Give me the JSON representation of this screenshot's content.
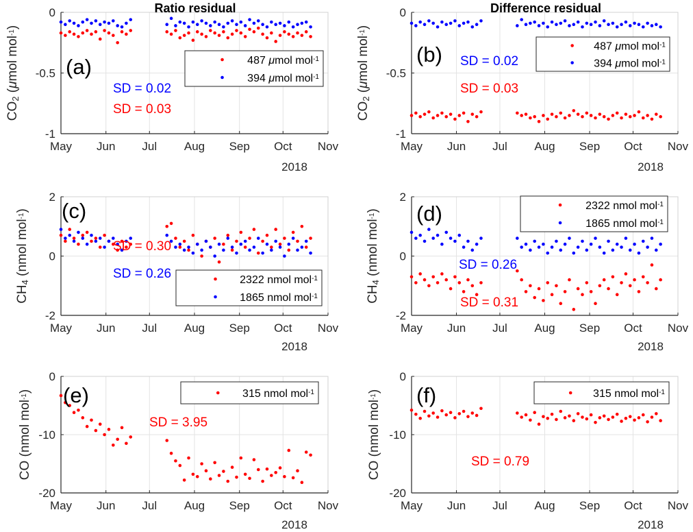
{
  "x_days_since_may1": [
    0,
    3,
    6,
    9,
    12,
    15,
    18,
    21,
    24,
    27,
    30,
    33,
    36,
    39,
    42,
    45,
    48,
    73,
    76,
    79,
    82,
    85,
    88,
    91,
    94,
    97,
    100,
    103,
    106,
    109,
    112,
    115,
    118,
    121,
    124,
    127,
    130,
    133,
    136,
    139,
    142,
    145,
    148,
    151,
    154,
    157,
    160,
    163,
    166,
    169,
    172
  ],
  "chart_data": [
    {
      "type": "scatter",
      "panel_label": "(a)",
      "title": "Ratio residual",
      "ylabel_parts": [
        {
          "t": "CO",
          "s": ""
        },
        {
          "t": "2",
          "s": "sub"
        },
        {
          "t": " (",
          "s": ""
        },
        {
          "t": "μ",
          "s": ""
        },
        {
          "t": "mol mol",
          "s": ""
        },
        {
          "t": "-1",
          "s": "sup"
        },
        {
          "t": ")",
          "s": ""
        }
      ],
      "ylim": [
        -1,
        0
      ],
      "yticks": [
        "0",
        "-0.5",
        "-1"
      ],
      "ytick_values": [
        0,
        -0.5,
        -1
      ],
      "xticks": [
        "May",
        "Jun",
        "Jul",
        "Aug",
        "Sep",
        "Oct",
        "Nov"
      ],
      "year_label": "2018",
      "series": [
        {
          "name": "487 μmol mol-1",
          "value": "487",
          "unit": "μmol mol",
          "exp": "-1",
          "color": "#ff0000",
          "values": [
            -0.17,
            -0.19,
            -0.16,
            -0.18,
            -0.2,
            -0.17,
            -0.15,
            -0.18,
            -0.16,
            -0.22,
            -0.15,
            -0.17,
            -0.19,
            -0.25,
            -0.16,
            -0.18,
            -0.15,
            -0.16,
            -0.18,
            -0.15,
            -0.21,
            -0.19,
            -0.17,
            -0.23,
            -0.16,
            -0.18,
            -0.2,
            -0.15,
            -0.17,
            -0.19,
            -0.16,
            -0.21,
            -0.18,
            -0.15,
            -0.17,
            -0.2,
            -0.14,
            -0.16,
            -0.13,
            -0.18,
            -0.21,
            -0.17,
            -0.24,
            -0.19,
            -0.16,
            -0.18,
            -0.2,
            -0.17,
            -0.19,
            -0.16,
            -0.2
          ]
        },
        {
          "name": "394 μmol mol-1",
          "value": "394",
          "unit": "μmol mol",
          "exp": "-1",
          "color": "#0000ff",
          "values": [
            -0.08,
            -0.1,
            -0.07,
            -0.09,
            -0.11,
            -0.08,
            -0.06,
            -0.09,
            -0.07,
            -0.1,
            -0.08,
            -0.09,
            -0.07,
            -0.11,
            -0.12,
            -0.09,
            -0.06,
            -0.1,
            -0.05,
            -0.11,
            -0.08,
            -0.09,
            -0.12,
            -0.08,
            -0.1,
            -0.07,
            -0.09,
            -0.11,
            -0.08,
            -0.1,
            -0.12,
            -0.09,
            -0.07,
            -0.1,
            -0.08,
            -0.11,
            -0.06,
            -0.09,
            -0.07,
            -0.1,
            -0.12,
            -0.08,
            -0.1,
            -0.09,
            -0.11,
            -0.08,
            -0.12,
            -0.1,
            -0.09,
            -0.08,
            -0.12
          ]
        }
      ],
      "annotations": [
        {
          "text": "SD  = 0.02",
          "color": "#0000ff"
        },
        {
          "text": "SD  = 0.03",
          "color": "#ff0000"
        }
      ]
    },
    {
      "type": "scatter",
      "panel_label": "(b)",
      "title": "Difference residual",
      "ylabel_parts": [
        {
          "t": "CO",
          "s": ""
        },
        {
          "t": "2",
          "s": "sub"
        },
        {
          "t": " (",
          "s": ""
        },
        {
          "t": "μ",
          "s": ""
        },
        {
          "t": "mol mol",
          "s": ""
        },
        {
          "t": "-1",
          "s": "sup"
        },
        {
          "t": ")",
          "s": ""
        }
      ],
      "ylim": [
        -1,
        0
      ],
      "yticks": [
        "0",
        "-0.5",
        "-1"
      ],
      "ytick_values": [
        0,
        -0.5,
        -1
      ],
      "xticks": [
        "May",
        "Jun",
        "Jul",
        "Aug",
        "Sep",
        "Oct",
        "Nov"
      ],
      "year_label": "2018",
      "series": [
        {
          "name": "487 μmol mol-1",
          "value": "487",
          "unit": "μmol mol",
          "exp": "-1",
          "color": "#ff0000",
          "values": [
            -0.85,
            -0.83,
            -0.86,
            -0.84,
            -0.82,
            -0.87,
            -0.85,
            -0.83,
            -0.86,
            -0.84,
            -0.88,
            -0.85,
            -0.83,
            -0.9,
            -0.84,
            -0.86,
            -0.82,
            -0.83,
            -0.85,
            -0.84,
            -0.87,
            -0.86,
            -0.9,
            -0.85,
            -0.88,
            -0.84,
            -0.86,
            -0.83,
            -0.87,
            -0.85,
            -0.81,
            -0.84,
            -0.86,
            -0.83,
            -0.85,
            -0.87,
            -0.84,
            -0.86,
            -0.88,
            -0.85,
            -0.83,
            -0.87,
            -0.84,
            -0.86,
            -0.85,
            -0.82,
            -0.87,
            -0.85,
            -0.88,
            -0.84,
            -0.86
          ]
        },
        {
          "name": "394 μmol mol-1",
          "value": "394",
          "unit": "μmol mol",
          "exp": "-1",
          "color": "#0000ff",
          "values": [
            -0.09,
            -0.11,
            -0.08,
            -0.1,
            -0.07,
            -0.09,
            -0.12,
            -0.08,
            -0.1,
            -0.09,
            -0.07,
            -0.11,
            -0.09,
            -0.08,
            -0.12,
            -0.1,
            -0.07,
            -0.11,
            -0.06,
            -0.1,
            -0.09,
            -0.08,
            -0.11,
            -0.09,
            -0.12,
            -0.08,
            -0.1,
            -0.09,
            -0.07,
            -0.11,
            -0.1,
            -0.08,
            -0.12,
            -0.09,
            -0.1,
            -0.08,
            -0.11,
            -0.07,
            -0.1,
            -0.09,
            -0.12,
            -0.1,
            -0.08,
            -0.11,
            -0.09,
            -0.1,
            -0.12,
            -0.09,
            -0.11,
            -0.1,
            -0.12
          ]
        }
      ],
      "annotations": [
        {
          "text": "SD = 0.02",
          "color": "#0000ff"
        },
        {
          "text": "SD = 0.03",
          "color": "#ff0000"
        }
      ]
    },
    {
      "type": "scatter",
      "panel_label": "(c)",
      "ylabel_parts": [
        {
          "t": "CH",
          "s": ""
        },
        {
          "t": "4",
          "s": "sub"
        },
        {
          "t": " (nmol mol",
          "s": ""
        },
        {
          "t": "-1",
          "s": "sup"
        },
        {
          "t": ")",
          "s": ""
        }
      ],
      "ylim": [
        -2,
        2
      ],
      "yticks": [
        "2",
        "0",
        "-2"
      ],
      "ytick_values": [
        2,
        0,
        -2
      ],
      "xticks": [
        "May",
        "Jun",
        "Jul",
        "Aug",
        "Sep",
        "Oct",
        "Nov"
      ],
      "year_label": "2018",
      "series": [
        {
          "name": "2322 nmol mol-1",
          "value": "2322",
          "unit": "nmol mol",
          "exp": "-1",
          "color": "#ff0000",
          "values": [
            0.7,
            0.5,
            0.9,
            0.6,
            0.4,
            0.7,
            0.8,
            0.5,
            0.6,
            0.3,
            0.7,
            0.5,
            0.4,
            0.2,
            0.5,
            0.3,
            0.4,
            1.0,
            1.1,
            0.6,
            0.3,
            0.5,
            0.2,
            0.7,
            0.4,
            0.0,
            0.5,
            0.3,
            0.6,
            -0.2,
            0.4,
            0.7,
            0.2,
            0.5,
            0.8,
            0.3,
            0.6,
            0.9,
            0.1,
            0.5,
            0.7,
            0.3,
            0.9,
            0.4,
            0.6,
            0.2,
            0.8,
            0.5,
            1.0,
            0.3,
            0.6
          ]
        },
        {
          "name": "1865 nmol mol-1",
          "value": "1865",
          "unit": "nmol mol",
          "exp": "-1",
          "color": "#0000ff",
          "values": [
            0.9,
            0.6,
            0.7,
            0.5,
            0.8,
            0.6,
            0.4,
            0.7,
            0.5,
            0.6,
            0.3,
            0.5,
            0.6,
            0.4,
            0.2,
            0.5,
            0.6,
            0.7,
            0.5,
            0.3,
            0.4,
            0.2,
            0.3,
            0.1,
            0.4,
            0.2,
            0.5,
            0.3,
            0.0,
            0.4,
            0.2,
            0.6,
            0.3,
            0.1,
            0.4,
            0.5,
            0.2,
            0.3,
            0.6,
            0.1,
            0.4,
            0.2,
            0.5,
            0.3,
            0.0,
            0.4,
            0.6,
            0.2,
            0.3,
            0.5,
            0.1
          ]
        }
      ],
      "annotations": [
        {
          "text": "SD = 0.30",
          "color": "#ff0000"
        },
        {
          "text": "SD = 0.26",
          "color": "#0000ff"
        }
      ]
    },
    {
      "type": "scatter",
      "panel_label": "(d)",
      "ylabel_parts": [
        {
          "t": "CH",
          "s": ""
        },
        {
          "t": "4",
          "s": "sub"
        },
        {
          "t": " (nmol mol",
          "s": ""
        },
        {
          "t": "-1",
          "s": "sup"
        },
        {
          "t": ")",
          "s": ""
        }
      ],
      "ylim": [
        -2,
        2
      ],
      "yticks": [
        "2",
        "0",
        "-2"
      ],
      "ytick_values": [
        2,
        0,
        -2
      ],
      "xticks": [
        "May",
        "Jun",
        "Jul",
        "Aug",
        "Sep",
        "Oct",
        "Nov"
      ],
      "year_label": "2018",
      "series": [
        {
          "name": "2322 nmol mol-1",
          "value": "2322",
          "unit": "nmol mol",
          "exp": "-1",
          "color": "#ff0000",
          "values": [
            -0.7,
            -0.9,
            -0.6,
            -0.8,
            -1.0,
            -0.7,
            -0.9,
            -0.6,
            -0.8,
            -1.1,
            -0.7,
            -0.9,
            -1.2,
            -0.8,
            -1.0,
            -1.3,
            -0.9,
            -0.5,
            -0.8,
            -1.2,
            -1.0,
            -1.4,
            -1.1,
            -1.5,
            -0.9,
            -1.3,
            -1.0,
            -1.6,
            -1.2,
            -0.8,
            -1.8,
            -1.1,
            -1.3,
            -0.9,
            -1.2,
            -1.6,
            -1.0,
            -0.8,
            -1.1,
            -0.7,
            -1.3,
            -0.9,
            -0.6,
            -1.0,
            -0.8,
            -1.2,
            -0.7,
            -0.9,
            -0.3,
            -1.1,
            -0.8
          ]
        },
        {
          "name": "1865 nmol mol-1",
          "value": "1865",
          "unit": "nmol mol",
          "exp": "-1",
          "color": "#0000ff",
          "values": [
            0.8,
            0.6,
            0.7,
            0.5,
            0.9,
            0.6,
            0.7,
            0.4,
            0.8,
            0.6,
            0.5,
            0.7,
            0.3,
            0.5,
            0.2,
            0.4,
            0.6,
            0.6,
            0.3,
            0.4,
            0.2,
            0.5,
            0.3,
            0.4,
            0.1,
            0.3,
            0.5,
            0.2,
            0.4,
            0.6,
            0.1,
            0.3,
            0.5,
            0.2,
            0.4,
            0.6,
            0.3,
            0.1,
            0.5,
            0.2,
            0.4,
            0.3,
            0.6,
            0.2,
            0.4,
            0.1,
            0.5,
            0.3,
            0.6,
            0.2,
            0.4
          ]
        }
      ],
      "annotations": [
        {
          "text": "SD = 0.26",
          "color": "#0000ff"
        },
        {
          "text": "SD = 0.31",
          "color": "#ff0000"
        }
      ]
    },
    {
      "type": "scatter",
      "panel_label": "(e)",
      "ylabel_parts": [
        {
          "t": "CO (nmol mol",
          "s": ""
        },
        {
          "t": "-1",
          "s": "sup"
        },
        {
          "t": ")",
          "s": ""
        }
      ],
      "ylim": [
        -20,
        0
      ],
      "yticks": [
        "0",
        "-10",
        "-20"
      ],
      "ytick_values": [
        0,
        -10,
        -20
      ],
      "xticks": [
        "May",
        "Jun",
        "Jul",
        "Aug",
        "Sep",
        "Oct",
        "Nov"
      ],
      "year_label": "2018",
      "series": [
        {
          "name": "315 nmol mol-1",
          "value": "315",
          "unit": "nmol mol",
          "exp": "-1",
          "color": "#ff0000",
          "values": [
            -3.3,
            -4.5,
            -5.0,
            -6.2,
            -5.8,
            -7.1,
            -8.6,
            -7.5,
            -9.3,
            -8.2,
            -10.0,
            -9.1,
            -11.8,
            -10.8,
            -8.8,
            -11.5,
            -10.4,
            -11.0,
            -13.2,
            -14.5,
            -15.3,
            -17.8,
            -14.0,
            -16.8,
            -17.2,
            -15.0,
            -16.2,
            -17.6,
            -14.8,
            -17.0,
            -16.3,
            -18.0,
            -15.6,
            -17.3,
            -14.0,
            -16.8,
            -17.5,
            -14.3,
            -16.0,
            -18.0,
            -15.9,
            -17.0,
            -16.5,
            -15.7,
            -17.2,
            -12.7,
            -17.4,
            -16.2,
            -18.2,
            -13.0,
            -13.5
          ]
        }
      ],
      "annotations": [
        {
          "text": "SD = 3.95",
          "color": "#ff0000"
        }
      ]
    },
    {
      "type": "scatter",
      "panel_label": "(f)",
      "ylabel_parts": [
        {
          "t": "CO (nmol mol",
          "s": ""
        },
        {
          "t": "-1",
          "s": "sup"
        },
        {
          "t": ")",
          "s": ""
        }
      ],
      "ylim": [
        -20,
        0
      ],
      "yticks": [
        "0",
        "-10",
        "-20"
      ],
      "ytick_values": [
        0,
        -10,
        -20
      ],
      "xticks": [
        "May",
        "Jun",
        "Jul",
        "Aug",
        "Sep",
        "Oct",
        "Nov"
      ],
      "year_label": "2018",
      "series": [
        {
          "name": "315 nmol mol-1",
          "value": "315",
          "unit": "nmol mol",
          "exp": "-1",
          "color": "#ff0000",
          "values": [
            -5.8,
            -6.5,
            -7.2,
            -6.0,
            -6.8,
            -6.3,
            -7.0,
            -5.9,
            -6.6,
            -6.2,
            -7.1,
            -6.4,
            -6.0,
            -6.9,
            -6.3,
            -6.7,
            -5.5,
            -6.3,
            -7.0,
            -6.6,
            -7.5,
            -6.2,
            -8.2,
            -6.9,
            -7.2,
            -6.5,
            -7.4,
            -6.0,
            -7.1,
            -6.8,
            -7.6,
            -6.4,
            -7.0,
            -7.3,
            -6.6,
            -7.9,
            -7.1,
            -6.8,
            -7.4,
            -7.0,
            -6.5,
            -7.7,
            -7.2,
            -6.9,
            -7.5,
            -7.1,
            -6.6,
            -7.8,
            -7.0,
            -6.4,
            -7.6
          ]
        }
      ],
      "annotations": [
        {
          "text": "SD = 0.79",
          "color": "#ff0000"
        }
      ]
    }
  ]
}
